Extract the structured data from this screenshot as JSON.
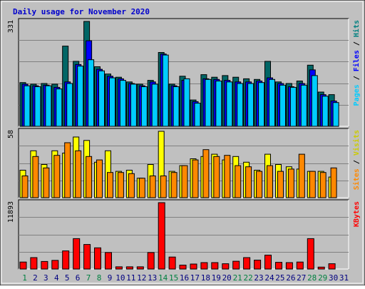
{
  "title": "Daily usage for November 2020",
  "colors": {
    "frame_bg": "#c0c0c0",
    "plot_bg": "#c0c0c0",
    "grid": "#808080",
    "title": "#0000cc",
    "hits": "#006666",
    "files": "#0000ff",
    "pages": "#00ccff",
    "visits": "#ffff00",
    "sites": "#ff8800",
    "kbytes": "#ff0000",
    "weekend": "#008040",
    "weekday": "#000080"
  },
  "chart_data": [
    {
      "type": "bar",
      "panel": "hits-files-pages",
      "ymax_label": "331",
      "ylim": [
        0,
        331
      ],
      "side_label_parts": [
        {
          "text": "Pages",
          "color": "#00ccff"
        },
        {
          "text": " / ",
          "color": "#000000"
        },
        {
          "text": "Files",
          "color": "#0000ff"
        },
        {
          "text": " / ",
          "color": "#000000"
        },
        {
          "text": "Hits",
          "color": "#008080"
        }
      ],
      "categories": [
        "1",
        "2",
        "3",
        "4",
        "5",
        "6",
        "7",
        "8",
        "9",
        "10",
        "11",
        "12",
        "13",
        "14",
        "15",
        "16",
        "17",
        "18",
        "19",
        "20",
        "21",
        "22",
        "23",
        "24",
        "25",
        "26",
        "27",
        "28",
        "29",
        "30"
      ],
      "series": [
        {
          "name": "Hits",
          "values": [
            138,
            133,
            135,
            133,
            253,
            205,
            331,
            188,
            165,
            155,
            140,
            133,
            145,
            233,
            133,
            158,
            83,
            163,
            155,
            160,
            155,
            150,
            148,
            205,
            140,
            135,
            143,
            193,
            108,
            100
          ]
        },
        {
          "name": "Files",
          "values": [
            133,
            128,
            130,
            123,
            140,
            195,
            270,
            180,
            158,
            150,
            135,
            128,
            140,
            228,
            128,
            145,
            78,
            150,
            148,
            145,
            140,
            140,
            143,
            153,
            135,
            125,
            135,
            178,
            100,
            80
          ]
        },
        {
          "name": "Pages",
          "values": [
            128,
            125,
            128,
            118,
            135,
            190,
            210,
            175,
            153,
            145,
            133,
            125,
            133,
            225,
            125,
            150,
            73,
            148,
            143,
            140,
            135,
            135,
            138,
            148,
            130,
            123,
            130,
            160,
            95,
            75
          ]
        }
      ]
    },
    {
      "type": "bar",
      "panel": "visits-sites",
      "ymax_label": "58",
      "ylim": [
        0,
        58
      ],
      "side_label_parts": [
        {
          "text": "Sites",
          "color": "#ff8800"
        },
        {
          "text": " / ",
          "color": "#000000"
        },
        {
          "text": "Visits",
          "color": "#cccc00"
        }
      ],
      "categories": [
        "1",
        "2",
        "3",
        "4",
        "5",
        "6",
        "7",
        "8",
        "9",
        "10",
        "11",
        "12",
        "13",
        "14",
        "15",
        "16",
        "17",
        "18",
        "19",
        "20",
        "21",
        "22",
        "23",
        "24",
        "25",
        "26",
        "27",
        "28",
        "29",
        "30"
      ],
      "series": [
        {
          "name": "Visits",
          "values": [
            24,
            41,
            29,
            41,
            39,
            53,
            50,
            31,
            41,
            23,
            24,
            17,
            29,
            58,
            23,
            28,
            34,
            36,
            38,
            33,
            36,
            31,
            24,
            38,
            29,
            27,
            25,
            23,
            23,
            18
          ]
        },
        {
          "name": "Sites",
          "values": [
            19,
            36,
            26,
            37,
            48,
            41,
            36,
            33,
            22,
            22,
            21,
            17,
            19,
            19,
            22,
            28,
            33,
            42,
            36,
            37,
            28,
            27,
            23,
            28,
            23,
            25,
            38,
            23,
            22,
            26
          ]
        }
      ]
    },
    {
      "type": "bar",
      "panel": "kbytes",
      "ymax_label": "11893",
      "ylim": [
        0,
        11893
      ],
      "side_label_parts": [
        {
          "text": "KBytes",
          "color": "#ff0000"
        }
      ],
      "categories": [
        "1",
        "2",
        "3",
        "4",
        "5",
        "6",
        "7",
        "8",
        "9",
        "10",
        "11",
        "12",
        "13",
        "14",
        "15",
        "16",
        "17",
        "18",
        "19",
        "20",
        "21",
        "22",
        "23",
        "24",
        "25",
        "26",
        "27",
        "28",
        "29",
        "30"
      ],
      "series": [
        {
          "name": "KBytes",
          "values": [
            1250,
            2050,
            1350,
            1550,
            3250,
            5450,
            4400,
            3800,
            2950,
            400,
            400,
            400,
            2950,
            11893,
            2150,
            700,
            900,
            1150,
            1150,
            950,
            1400,
            2050,
            1600,
            2500,
            1200,
            1150,
            1250,
            5450,
            350,
            950
          ]
        }
      ]
    }
  ],
  "x_axis": {
    "labels": [
      "1",
      "2",
      "3",
      "4",
      "5",
      "6",
      "7",
      "8",
      "9",
      "10",
      "11",
      "12",
      "13",
      "14",
      "15",
      "16",
      "17",
      "18",
      "19",
      "20",
      "21",
      "22",
      "23",
      "24",
      "25",
      "26",
      "27",
      "28",
      "29",
      "30",
      "31"
    ],
    "weekend_days": [
      1,
      7,
      8,
      14,
      15,
      21,
      22,
      28,
      29
    ]
  }
}
